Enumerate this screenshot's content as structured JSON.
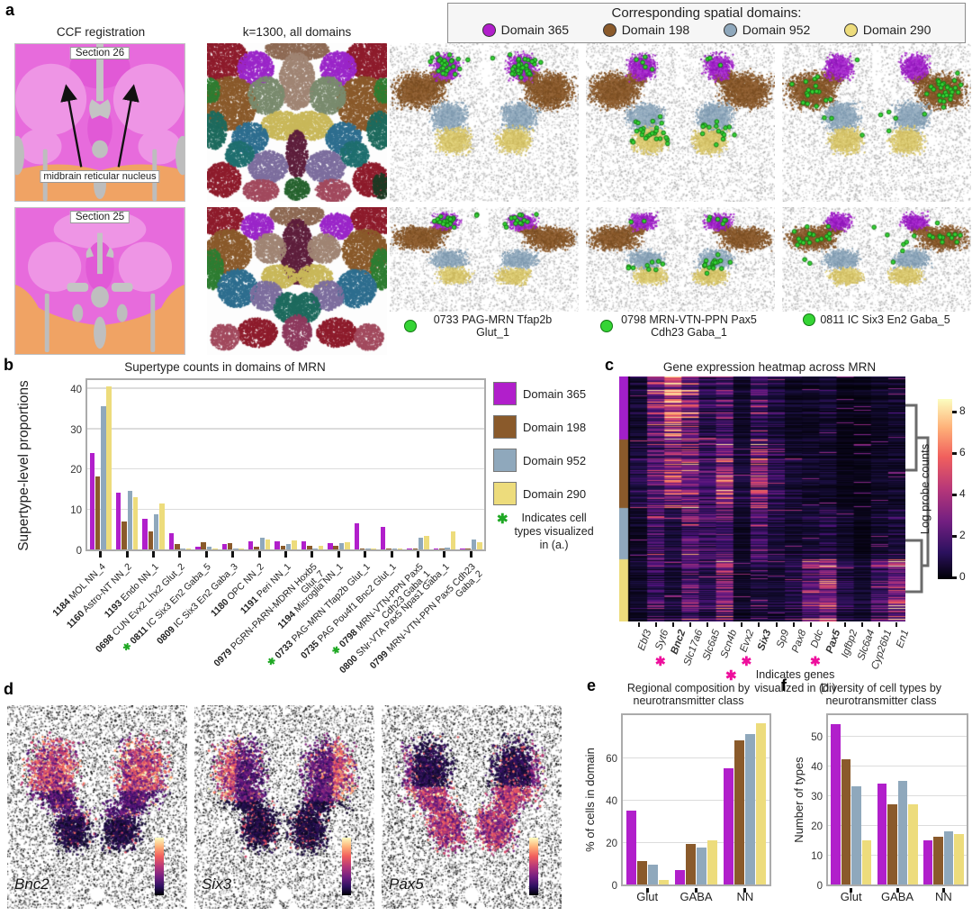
{
  "panels": {
    "a": "a",
    "b": "b",
    "c": "c",
    "d": "d",
    "e": "e",
    "f": "f"
  },
  "colors": {
    "domain365": "#B11FCB",
    "domain198": "#8A5A2B",
    "domain952": "#8FA8BC",
    "domain290": "#EDDC7C",
    "green_dot": "#35D435",
    "green_dot_edge": "#117711",
    "green_asterisk": "#1FA824",
    "pink_asterisk": "#EE0E9C",
    "ccf_pink": "#E76BDC",
    "ccf_light": "#EE95E5",
    "ccf_orange": "#F0A364"
  },
  "legend": {
    "title": "Corresponding spatial domains:",
    "items": [
      {
        "label": "Domain 365",
        "color": "#B11FCB"
      },
      {
        "label": "Domain 198",
        "color": "#8A5A2B"
      },
      {
        "label": "Domain 952",
        "color": "#8FA8BC"
      },
      {
        "label": "Domain 290",
        "color": "#EDDC7C"
      }
    ]
  },
  "panel_a": {
    "ccf_title": "CCF registration",
    "k_title": "k=1300, all domains",
    "sections": [
      "Section 26",
      "Section 25"
    ],
    "annotation": "midbrain reticular nucleus",
    "cell_type_labels": [
      "0733 PAG-MRN Tfap2b Glut_1",
      "0798 MRN-VTN-PPN Pax5 Cdh23 Gaba_1",
      "0811 IC Six3 En2 Gaba_5"
    ]
  },
  "panel_d": {
    "genes": [
      "Bnc2",
      "Six3",
      "Pax5"
    ]
  },
  "chart_data": {
    "b": {
      "type": "bar",
      "title": "Supertype counts in domains of MRN",
      "ylabel": "Supertype-level proportions",
      "ylim": [
        0,
        42
      ],
      "yticks": [
        0,
        10,
        20,
        30,
        40
      ],
      "note": "Indicates cell types visualized in (a.)",
      "categories": [
        {
          "code": "1184",
          "name": "MOL NN_4",
          "star": false
        },
        {
          "code": "1160",
          "name": "Astro-NT NN_2",
          "star": false
        },
        {
          "code": "1193",
          "name": "Endo NN_1",
          "star": false
        },
        {
          "code": "0698",
          "name": "CUN Evx2 Lhx2 Glut_2",
          "star": false
        },
        {
          "code": "0811",
          "name": "IC Six3 En2 Gaba_5",
          "star": true
        },
        {
          "code": "0809",
          "name": "IC Six3 En2 Gaba_3",
          "star": false
        },
        {
          "code": "1180",
          "name": "OPC NN_2",
          "star": false
        },
        {
          "code": "1191",
          "name": "Peri NN_1",
          "star": false
        },
        {
          "code": "0979",
          "name": "PGRN-PARN-MDRN Hoxb5 Glut_7",
          "star": false
        },
        {
          "code": "1194",
          "name": "Microglia NN_1",
          "star": false
        },
        {
          "code": "0733",
          "name": "PAG-MRN Tfap2b Glut_1",
          "star": true
        },
        {
          "code": "0735",
          "name": "PAG Pou4f1 Bnc2 Glut_1",
          "star": false
        },
        {
          "code": "0798",
          "name": "MRN-VTN-PPN Pax5 Cdh23 Gaba_1",
          "star": true
        },
        {
          "code": "0800",
          "name": "SNr-VTA Pax5 Npas1 Gaba_1",
          "star": false
        },
        {
          "code": "0799",
          "name": "MRN-VTN-PPN Pax5 Cdh23 Gaba_2",
          "star": false
        }
      ],
      "series": [
        {
          "name": "Domain 365",
          "color": "#B11FCB",
          "values": [
            24,
            14,
            7.5,
            4,
            0.7,
            1.4,
            2,
            2,
            2,
            1.6,
            6.5,
            5.6,
            0.3,
            0.1,
            0.1
          ]
        },
        {
          "name": "Domain 198",
          "color": "#8A5A2B",
          "values": [
            18,
            7,
            4.5,
            1.4,
            1.8,
            1.6,
            0.6,
            0.9,
            0.8,
            0.9,
            0.3,
            0.2,
            0.2,
            0.1,
            0.1
          ]
        },
        {
          "name": "Domain 952",
          "color": "#8FA8BC",
          "values": [
            35.5,
            14.5,
            8.7,
            0.2,
            0.7,
            0.1,
            2.9,
            1.4,
            0.3,
            1.5,
            0.1,
            0.1,
            3.0,
            0.4,
            2.5
          ]
        },
        {
          "name": "Domain 290",
          "color": "#EDDC7C",
          "values": [
            40.5,
            13,
            11.5,
            0.1,
            0.1,
            0.1,
            2.4,
            2.2,
            0.9,
            1.9,
            0.1,
            0.1,
            3.4,
            4.5,
            1.7
          ]
        }
      ]
    },
    "c": {
      "type": "heatmap",
      "title": "Gene expression heatmap across MRN",
      "colorbar_label": "Log probe counts",
      "colorbar_ticks": [
        8,
        6,
        4,
        2,
        0
      ],
      "note": "Indicates genes visualized in (d.)",
      "genes": [
        {
          "name": "Ebf3",
          "star": false
        },
        {
          "name": "Syt6",
          "star": false
        },
        {
          "name": "Bnc2",
          "star": true
        },
        {
          "name": "Slc17a6",
          "star": false
        },
        {
          "name": "Slc6a5",
          "star": false
        },
        {
          "name": "Scn4b",
          "star": false
        },
        {
          "name": "Evx2",
          "star": false
        },
        {
          "name": "Six3",
          "star": true
        },
        {
          "name": "Sp9",
          "star": false
        },
        {
          "name": "Pax8",
          "star": false
        },
        {
          "name": "Ddc",
          "star": false
        },
        {
          "name": "Pax5",
          "star": true
        },
        {
          "name": "Igfbp2",
          "star": false
        },
        {
          "name": "Slc6a4",
          "star": false
        },
        {
          "name": "Cyp26b1",
          "star": false
        },
        {
          "name": "En1",
          "star": false
        }
      ],
      "row_blocks": [
        {
          "domain": "Domain 365",
          "color": "#A21FC9",
          "height": 70
        },
        {
          "domain": "Domain 198",
          "color": "#8A5A2B",
          "height": 76
        },
        {
          "domain": "Domain 952",
          "color": "#8FA8BC",
          "height": 57
        },
        {
          "domain": "Domain 290",
          "color": "#EDDC7C",
          "height": 69
        }
      ],
      "block_gene_intensity": [
        [
          0.12,
          0.45,
          0.85,
          0.5,
          0.2,
          0.3,
          0.1,
          0.25,
          0.15,
          0.08,
          0.08,
          0.12,
          0.05,
          0.05,
          0.08,
          0.1
        ],
        [
          0.18,
          0.35,
          0.55,
          0.45,
          0.25,
          0.55,
          0.15,
          0.5,
          0.2,
          0.12,
          0.1,
          0.1,
          0.05,
          0.05,
          0.08,
          0.1
        ],
        [
          0.08,
          0.3,
          0.15,
          0.35,
          0.3,
          0.3,
          0.08,
          0.3,
          0.15,
          0.1,
          0.12,
          0.18,
          0.1,
          0.05,
          0.1,
          0.15
        ],
        [
          0.08,
          0.22,
          0.12,
          0.3,
          0.18,
          0.4,
          0.08,
          0.12,
          0.1,
          0.15,
          0.35,
          0.5,
          0.15,
          0.1,
          0.25,
          0.45
        ]
      ]
    },
    "e": {
      "type": "bar",
      "title": "Regional composition by neurotransmitter class",
      "ylabel": "% of cells in domain",
      "ylim": [
        0,
        80
      ],
      "yticks": [
        0,
        20,
        40,
        60
      ],
      "categories": [
        "Glut",
        "GABA",
        "NN"
      ],
      "series": [
        {
          "name": "Domain 365",
          "color": "#B11FCB",
          "values": [
            35,
            7,
            55
          ]
        },
        {
          "name": "Domain 198",
          "color": "#8A5A2B",
          "values": [
            11,
            19,
            68
          ]
        },
        {
          "name": "Domain 952",
          "color": "#8FA8BC",
          "values": [
            9.5,
            17.5,
            71
          ]
        },
        {
          "name": "Domain 290",
          "color": "#EDDC7C",
          "values": [
            2,
            21,
            76
          ]
        }
      ]
    },
    "f": {
      "type": "bar",
      "title": "Diversity of cell types by neurotransmitter class",
      "ylabel": "Number of types",
      "ylim": [
        0,
        57
      ],
      "yticks": [
        0,
        10,
        20,
        30,
        40,
        50
      ],
      "categories": [
        "Glut",
        "GABA",
        "NN"
      ],
      "series": [
        {
          "name": "Domain 365",
          "color": "#B11FCB",
          "values": [
            54,
            34,
            15
          ]
        },
        {
          "name": "Domain 198",
          "color": "#8A5A2B",
          "values": [
            42,
            27,
            16
          ]
        },
        {
          "name": "Domain 952",
          "color": "#8FA8BC",
          "values": [
            33,
            35,
            18
          ]
        },
        {
          "name": "Domain 290",
          "color": "#EDDC7C",
          "values": [
            15,
            27,
            17
          ]
        }
      ]
    }
  }
}
